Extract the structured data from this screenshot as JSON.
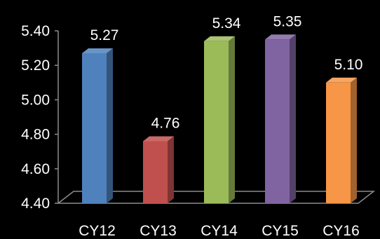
{
  "chart_data": {
    "type": "bar",
    "categories": [
      "CY12",
      "CY13",
      "CY14",
      "CY15",
      "CY16"
    ],
    "values": [
      5.27,
      4.76,
      5.34,
      5.35,
      5.1
    ],
    "data_labels": [
      "5.27",
      "4.76",
      "5.34",
      "5.35",
      "5.10"
    ],
    "y_ticks": [
      "4.40",
      "4.60",
      "4.80",
      "5.00",
      "5.20",
      "5.40"
    ],
    "ylim": [
      4.4,
      5.4
    ],
    "title": "",
    "xlabel": "",
    "ylabel": "",
    "grid": false,
    "legend": "none",
    "bar_style": "3d",
    "colors": [
      "#4f81bd",
      "#c0504d",
      "#9bbb59",
      "#8064a2",
      "#f79646"
    ],
    "background": "#000000",
    "text_color": "#ffffff"
  }
}
